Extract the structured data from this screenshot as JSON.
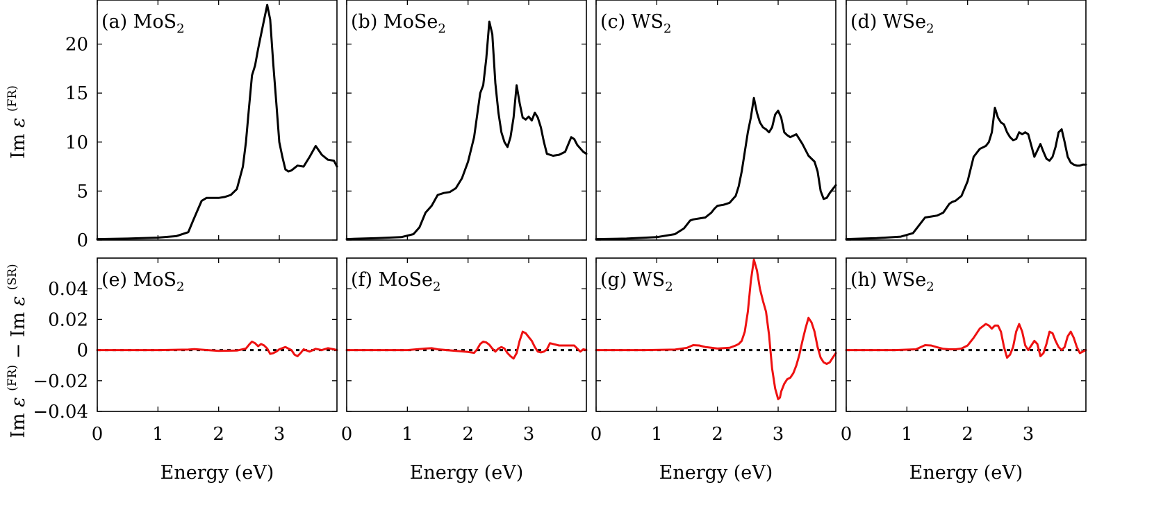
{
  "colors": {
    "top_series": "#000000",
    "bottom_series": "#ee1111",
    "reference_line": "#000000"
  },
  "chart_data": [
    {
      "type": "line",
      "panel": "(a)",
      "title": "MoS",
      "title_sub": "2",
      "ylim": [
        0,
        24.5
      ],
      "xlim": [
        0,
        3.95
      ],
      "yticks": [
        0,
        5,
        10,
        15,
        20
      ],
      "ytick_labels": [
        "0",
        "5",
        "10",
        "15",
        "20"
      ],
      "xticks": [
        0,
        1,
        2,
        3
      ],
      "xtick_labels": [
        "0",
        "1",
        "2",
        "3"
      ],
      "x": [
        0,
        0.5,
        1.0,
        1.3,
        1.5,
        1.58,
        1.65,
        1.72,
        1.8,
        1.9,
        2.0,
        2.1,
        2.2,
        2.3,
        2.4,
        2.45,
        2.5,
        2.55,
        2.6,
        2.65,
        2.7,
        2.75,
        2.8,
        2.85,
        2.9,
        2.95,
        3.0,
        3.05,
        3.1,
        3.15,
        3.2,
        3.3,
        3.4,
        3.5,
        3.6,
        3.7,
        3.8,
        3.9,
        3.95
      ],
      "y": [
        0.1,
        0.15,
        0.25,
        0.4,
        0.8,
        2.0,
        3.0,
        4.0,
        4.3,
        4.3,
        4.3,
        4.4,
        4.6,
        5.2,
        7.5,
        10.0,
        13.5,
        16.8,
        17.8,
        19.5,
        21.0,
        22.5,
        24.0,
        22.5,
        18.0,
        14.0,
        10.0,
        8.5,
        7.2,
        7.0,
        7.1,
        7.6,
        7.5,
        8.5,
        9.6,
        8.7,
        8.2,
        8.1,
        7.5
      ]
    },
    {
      "type": "line",
      "panel": "(b)",
      "title": "MoSe",
      "title_sub": "2",
      "ylim": [
        0,
        24.5
      ],
      "xlim": [
        0,
        3.95
      ],
      "xticks": [
        0,
        1,
        2,
        3
      ],
      "xtick_labels": [
        "0",
        "1",
        "2",
        "3"
      ],
      "x": [
        0,
        0.5,
        0.9,
        1.1,
        1.2,
        1.3,
        1.4,
        1.5,
        1.6,
        1.7,
        1.8,
        1.9,
        2.0,
        2.1,
        2.2,
        2.25,
        2.3,
        2.35,
        2.4,
        2.45,
        2.5,
        2.55,
        2.6,
        2.65,
        2.7,
        2.75,
        2.8,
        2.85,
        2.9,
        2.95,
        3.0,
        3.05,
        3.1,
        3.15,
        3.2,
        3.25,
        3.3,
        3.4,
        3.5,
        3.6,
        3.7,
        3.75,
        3.8,
        3.9,
        3.95
      ],
      "y": [
        0.1,
        0.2,
        0.3,
        0.6,
        1.3,
        2.8,
        3.5,
        4.6,
        4.8,
        4.9,
        5.3,
        6.3,
        8.0,
        10.5,
        15.0,
        15.8,
        18.5,
        22.3,
        21.0,
        16.0,
        13.0,
        11.0,
        10.0,
        9.5,
        10.5,
        12.5,
        15.8,
        14.0,
        12.5,
        12.3,
        12.6,
        12.2,
        13.0,
        12.5,
        11.5,
        10.0,
        8.8,
        8.6,
        8.7,
        9.0,
        10.5,
        10.3,
        9.7,
        9.0,
        8.8
      ]
    },
    {
      "type": "line",
      "panel": "(c)",
      "title": "WS",
      "title_sub": "2",
      "ylim": [
        0,
        24.5
      ],
      "xlim": [
        0,
        3.95
      ],
      "xticks": [
        0,
        1,
        2,
        3
      ],
      "xtick_labels": [
        "0",
        "1",
        "2",
        "3"
      ],
      "x": [
        0,
        0.5,
        1.0,
        1.3,
        1.45,
        1.55,
        1.6,
        1.7,
        1.8,
        1.9,
        1.95,
        2.0,
        2.1,
        2.2,
        2.3,
        2.35,
        2.4,
        2.45,
        2.5,
        2.55,
        2.6,
        2.65,
        2.7,
        2.75,
        2.8,
        2.85,
        2.9,
        2.95,
        3.0,
        3.05,
        3.1,
        3.15,
        3.2,
        3.3,
        3.4,
        3.5,
        3.6,
        3.65,
        3.7,
        3.75,
        3.8,
        3.85,
        3.9,
        3.95
      ],
      "y": [
        0.1,
        0.15,
        0.3,
        0.6,
        1.2,
        2.0,
        2.1,
        2.2,
        2.3,
        2.8,
        3.2,
        3.5,
        3.6,
        3.8,
        4.5,
        5.5,
        7.0,
        9.0,
        11.0,
        12.5,
        14.5,
        13.0,
        12.0,
        11.5,
        11.3,
        11.0,
        11.5,
        12.8,
        13.2,
        12.5,
        11.0,
        10.7,
        10.5,
        10.8,
        9.8,
        8.6,
        8.0,
        7.0,
        5.0,
        4.2,
        4.3,
        4.8,
        5.2,
        5.6
      ]
    },
    {
      "type": "line",
      "panel": "(d)",
      "title": "WSe",
      "title_sub": "2",
      "ylim": [
        0,
        24.5
      ],
      "xlim": [
        0,
        3.95
      ],
      "xticks": [
        0,
        1,
        2,
        3
      ],
      "xtick_labels": [
        "0",
        "1",
        "2",
        "3"
      ],
      "x": [
        0,
        0.5,
        0.9,
        1.1,
        1.2,
        1.3,
        1.4,
        1.5,
        1.6,
        1.7,
        1.75,
        1.8,
        1.9,
        2.0,
        2.1,
        2.2,
        2.3,
        2.35,
        2.4,
        2.45,
        2.5,
        2.55,
        2.6,
        2.65,
        2.7,
        2.75,
        2.8,
        2.85,
        2.9,
        2.95,
        3.0,
        3.1,
        3.2,
        3.25,
        3.3,
        3.35,
        3.4,
        3.45,
        3.5,
        3.55,
        3.6,
        3.65,
        3.7,
        3.75,
        3.8,
        3.85,
        3.9,
        3.95
      ],
      "y": [
        0.1,
        0.2,
        0.35,
        0.7,
        1.5,
        2.3,
        2.4,
        2.5,
        2.8,
        3.7,
        3.9,
        4.0,
        4.5,
        6.0,
        8.5,
        9.3,
        9.6,
        10.0,
        11.0,
        13.5,
        12.5,
        12.0,
        11.8,
        11.0,
        10.5,
        10.2,
        10.3,
        11.0,
        10.8,
        11.0,
        10.8,
        8.5,
        9.8,
        9.0,
        8.3,
        8.1,
        8.5,
        9.5,
        11.0,
        11.3,
        10.0,
        8.5,
        7.9,
        7.7,
        7.6,
        7.6,
        7.7,
        7.7
      ]
    },
    {
      "type": "line",
      "panel": "(e)",
      "title": "MoS",
      "title_sub": "2",
      "ylim": [
        -0.04,
        0.06
      ],
      "xlim": [
        0,
        3.95
      ],
      "yticks": [
        -0.04,
        -0.02,
        0,
        0.02,
        0.04
      ],
      "ytick_labels": [
        "−0.04",
        "−0.02",
        "0",
        "0.02",
        "0.04"
      ],
      "xticks": [
        0,
        1,
        2,
        3
      ],
      "xtick_labels": [
        "0",
        "1",
        "2",
        "3"
      ],
      "x": [
        0,
        1.0,
        1.5,
        1.6,
        1.7,
        2.0,
        2.3,
        2.45,
        2.5,
        2.55,
        2.6,
        2.65,
        2.7,
        2.75,
        2.8,
        2.85,
        2.9,
        2.95,
        3.0,
        3.1,
        3.15,
        3.2,
        3.25,
        3.3,
        3.35,
        3.4,
        3.5,
        3.6,
        3.7,
        3.8,
        3.9,
        3.95
      ],
      "y": [
        0,
        0,
        0.0003,
        0.0006,
        0.0003,
        -0.0005,
        -0.0003,
        0.001,
        0.0035,
        0.0055,
        0.0045,
        0.0025,
        0.004,
        0.003,
        0.001,
        -0.0025,
        -0.002,
        -0.001,
        0.0005,
        0.002,
        0.001,
        0,
        -0.003,
        -0.004,
        -0.002,
        0.0005,
        -0.001,
        0.0008,
        0,
        0.0012,
        0.0005,
        0
      ]
    },
    {
      "type": "line",
      "panel": "(f)",
      "title": "MoSe",
      "title_sub": "2",
      "ylim": [
        -0.04,
        0.06
      ],
      "xlim": [
        0,
        3.95
      ],
      "xticks": [
        0,
        1,
        2,
        3
      ],
      "xtick_labels": [
        "0",
        "1",
        "2",
        "3"
      ],
      "x": [
        0,
        1.0,
        1.3,
        1.4,
        1.5,
        2.0,
        2.1,
        2.15,
        2.2,
        2.25,
        2.3,
        2.35,
        2.4,
        2.45,
        2.5,
        2.55,
        2.6,
        2.65,
        2.7,
        2.75,
        2.8,
        2.85,
        2.9,
        2.95,
        3.0,
        3.05,
        3.1,
        3.15,
        3.2,
        3.25,
        3.3,
        3.35,
        3.5,
        3.6,
        3.7,
        3.75,
        3.8,
        3.85,
        3.9,
        3.95
      ],
      "y": [
        0,
        0,
        0.001,
        0.0012,
        0.0005,
        -0.0012,
        -0.0018,
        0.0005,
        0.004,
        0.0055,
        0.005,
        0.0035,
        0.001,
        -0.001,
        0.001,
        0.002,
        0.001,
        -0.002,
        -0.004,
        -0.0055,
        -0.002,
        0.006,
        0.012,
        0.011,
        0.0085,
        0.006,
        0.002,
        -0.001,
        -0.0015,
        -0.001,
        0.0005,
        0.0045,
        0.003,
        0.003,
        0.003,
        0.003,
        0.001,
        -0.001,
        0.0005,
        0
      ]
    },
    {
      "type": "line",
      "panel": "(g)",
      "title": "WS",
      "title_sub": "2",
      "ylim": [
        -0.04,
        0.06
      ],
      "xlim": [
        0,
        3.95
      ],
      "xticks": [
        0,
        1,
        2,
        3
      ],
      "xtick_labels": [
        "0",
        "1",
        "2",
        "3"
      ],
      "x": [
        0,
        0.8,
        1.3,
        1.5,
        1.6,
        1.7,
        1.8,
        2.0,
        2.2,
        2.3,
        2.35,
        2.4,
        2.45,
        2.5,
        2.55,
        2.6,
        2.65,
        2.7,
        2.75,
        2.8,
        2.85,
        2.9,
        2.95,
        3.0,
        3.03,
        3.05,
        3.1,
        3.15,
        3.2,
        3.25,
        3.3,
        3.35,
        3.4,
        3.45,
        3.5,
        3.55,
        3.6,
        3.65,
        3.7,
        3.75,
        3.8,
        3.85,
        3.9,
        3.95
      ],
      "y": [
        0,
        0,
        0.0003,
        0.0015,
        0.0032,
        0.003,
        0.002,
        0.001,
        0.0015,
        0.003,
        0.004,
        0.006,
        0.012,
        0.025,
        0.045,
        0.059,
        0.052,
        0.04,
        0.032,
        0.025,
        0.01,
        -0.012,
        -0.025,
        -0.032,
        -0.031,
        -0.027,
        -0.022,
        -0.019,
        -0.018,
        -0.015,
        -0.01,
        -0.003,
        0.006,
        0.014,
        0.021,
        0.018,
        0.012,
        0.002,
        -0.005,
        -0.008,
        -0.009,
        -0.008,
        -0.005,
        -0.002
      ]
    },
    {
      "type": "line",
      "panel": "(h)",
      "title": "WSe",
      "title_sub": "2",
      "ylim": [
        -0.04,
        0.06
      ],
      "xlim": [
        0,
        3.95
      ],
      "xticks": [
        0,
        1,
        2,
        3
      ],
      "xtick_labels": [
        "0",
        "1",
        "2",
        "3"
      ],
      "x": [
        0,
        0.8,
        1.15,
        1.3,
        1.4,
        1.5,
        1.6,
        1.7,
        1.8,
        1.9,
        2.0,
        2.1,
        2.2,
        2.3,
        2.35,
        2.4,
        2.45,
        2.5,
        2.55,
        2.6,
        2.65,
        2.7,
        2.75,
        2.8,
        2.85,
        2.9,
        2.95,
        3.0,
        3.05,
        3.1,
        3.15,
        3.2,
        3.25,
        3.3,
        3.35,
        3.4,
        3.45,
        3.5,
        3.55,
        3.6,
        3.65,
        3.7,
        3.75,
        3.8,
        3.85,
        3.9,
        3.95
      ],
      "y": [
        0,
        0,
        0.0005,
        0.0032,
        0.003,
        0.0018,
        0.0008,
        0.0005,
        0.0005,
        0.001,
        0.003,
        0.008,
        0.014,
        0.017,
        0.016,
        0.014,
        0.016,
        0.016,
        0.012,
        0.002,
        -0.005,
        -0.003,
        0.002,
        0.012,
        0.017,
        0.012,
        0.003,
        0,
        0.003,
        0.006,
        0.004,
        -0.004,
        -0.002,
        0.004,
        0.012,
        0.011,
        0.006,
        0.002,
        0,
        0.002,
        0.009,
        0.012,
        0.008,
        0.002,
        -0.002,
        -0.001,
        0
      ]
    }
  ],
  "axes": {
    "top_ylabel": {
      "pre": "Im",
      "sym": "ε",
      "sup": "(FR)"
    },
    "bottom_ylabel": {
      "pre": "Im",
      "sym": "ε",
      "sup1": "(FR)",
      "mid": " − Im",
      "sym2": "ε",
      "sup2": "(SR)"
    },
    "xlabel": "Energy (eV)"
  }
}
